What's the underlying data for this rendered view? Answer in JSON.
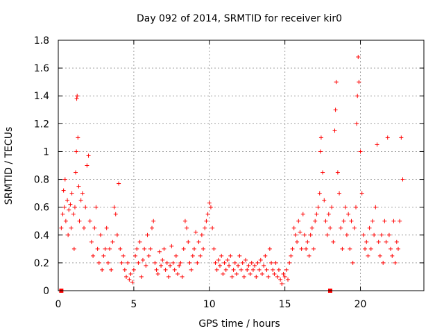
{
  "chart_data": {
    "type": "scatter",
    "title": "Day 092 of 2014, SRMTID for receiver kir0",
    "xlabel": "GPS time / hours",
    "ylabel": "SRMTID / TECUs",
    "xlim": [
      0,
      24.2
    ],
    "ylim": [
      0,
      1.8
    ],
    "grid": true,
    "marker": "+",
    "series_color": "#ff0000",
    "x_ticks": [
      {
        "value": 0,
        "label": "0"
      },
      {
        "value": 5,
        "label": "5"
      },
      {
        "value": 10,
        "label": "10"
      },
      {
        "value": 15,
        "label": "15"
      },
      {
        "value": 20,
        "label": "20"
      }
    ],
    "y_ticks": [
      {
        "value": 0,
        "label": "0"
      },
      {
        "value": 0.2,
        "label": "0.2"
      },
      {
        "value": 0.4,
        "label": "0.4"
      },
      {
        "value": 0.6,
        "label": "0.6"
      },
      {
        "value": 0.8,
        "label": "0.8"
      },
      {
        "value": 1.0,
        "label": "1"
      },
      {
        "value": 1.2,
        "label": "1.2"
      },
      {
        "value": 1.4,
        "label": "1.4"
      },
      {
        "value": 1.6,
        "label": "1.6"
      },
      {
        "value": 1.8,
        "label": "1.8"
      }
    ],
    "baseline_markers": [
      {
        "x": 0.2,
        "y": 0
      },
      {
        "x": 18.0,
        "y": 0
      }
    ],
    "points": [
      {
        "x": 0.2,
        "y": 0.45
      },
      {
        "x": 0.3,
        "y": 0.55
      },
      {
        "x": 0.35,
        "y": 0.72
      },
      {
        "x": 0.4,
        "y": 0.6
      },
      {
        "x": 0.45,
        "y": 0.8
      },
      {
        "x": 0.5,
        "y": 0.5
      },
      {
        "x": 0.6,
        "y": 0.65
      },
      {
        "x": 0.65,
        "y": 0.4
      },
      {
        "x": 0.7,
        "y": 0.58
      },
      {
        "x": 0.8,
        "y": 0.62
      },
      {
        "x": 0.85,
        "y": 0.45
      },
      {
        "x": 0.9,
        "y": 0.7
      },
      {
        "x": 1.0,
        "y": 0.55
      },
      {
        "x": 1.05,
        "y": 0.3
      },
      {
        "x": 1.1,
        "y": 0.6
      },
      {
        "x": 1.15,
        "y": 0.85
      },
      {
        "x": 1.2,
        "y": 1.0
      },
      {
        "x": 1.22,
        "y": 1.38
      },
      {
        "x": 1.25,
        "y": 1.4
      },
      {
        "x": 1.3,
        "y": 1.1
      },
      {
        "x": 1.35,
        "y": 0.75
      },
      {
        "x": 1.4,
        "y": 0.5
      },
      {
        "x": 1.5,
        "y": 0.65
      },
      {
        "x": 1.6,
        "y": 0.7
      },
      {
        "x": 1.7,
        "y": 0.45
      },
      {
        "x": 1.8,
        "y": 0.6
      },
      {
        "x": 1.9,
        "y": 0.9
      },
      {
        "x": 2.0,
        "y": 0.97
      },
      {
        "x": 2.1,
        "y": 0.5
      },
      {
        "x": 2.2,
        "y": 0.35
      },
      {
        "x": 2.3,
        "y": 0.25
      },
      {
        "x": 2.4,
        "y": 0.45
      },
      {
        "x": 2.5,
        "y": 0.6
      },
      {
        "x": 2.6,
        "y": 0.3
      },
      {
        "x": 2.7,
        "y": 0.2
      },
      {
        "x": 2.8,
        "y": 0.4
      },
      {
        "x": 2.9,
        "y": 0.15
      },
      {
        "x": 3.0,
        "y": 0.25
      },
      {
        "x": 3.1,
        "y": 0.3
      },
      {
        "x": 3.2,
        "y": 0.45
      },
      {
        "x": 3.3,
        "y": 0.2
      },
      {
        "x": 3.4,
        "y": 0.3
      },
      {
        "x": 3.5,
        "y": 0.15
      },
      {
        "x": 3.6,
        "y": 0.35
      },
      {
        "x": 3.7,
        "y": 0.6
      },
      {
        "x": 3.8,
        "y": 0.55
      },
      {
        "x": 3.9,
        "y": 0.4
      },
      {
        "x": 4.0,
        "y": 0.77
      },
      {
        "x": 4.1,
        "y": 0.3
      },
      {
        "x": 4.2,
        "y": 0.2
      },
      {
        "x": 4.3,
        "y": 0.25
      },
      {
        "x": 4.4,
        "y": 0.15
      },
      {
        "x": 4.5,
        "y": 0.1
      },
      {
        "x": 4.6,
        "y": 0.2
      },
      {
        "x": 4.7,
        "y": 0.08
      },
      {
        "x": 4.8,
        "y": 0.12
      },
      {
        "x": 4.9,
        "y": 0.06
      },
      {
        "x": 5.0,
        "y": 0.15
      },
      {
        "x": 5.1,
        "y": 0.25
      },
      {
        "x": 5.2,
        "y": 0.3
      },
      {
        "x": 5.3,
        "y": 0.2
      },
      {
        "x": 5.4,
        "y": 0.35
      },
      {
        "x": 5.5,
        "y": 0.1
      },
      {
        "x": 5.6,
        "y": 0.22
      },
      {
        "x": 5.7,
        "y": 0.3
      },
      {
        "x": 5.8,
        "y": 0.18
      },
      {
        "x": 5.9,
        "y": 0.4
      },
      {
        "x": 6.0,
        "y": 0.25
      },
      {
        "x": 6.1,
        "y": 0.3
      },
      {
        "x": 6.2,
        "y": 0.45
      },
      {
        "x": 6.3,
        "y": 0.5
      },
      {
        "x": 6.4,
        "y": 0.2
      },
      {
        "x": 6.5,
        "y": 0.15
      },
      {
        "x": 6.6,
        "y": 0.12
      },
      {
        "x": 6.7,
        "y": 0.28
      },
      {
        "x": 6.8,
        "y": 0.18
      },
      {
        "x": 6.9,
        "y": 0.22
      },
      {
        "x": 7.0,
        "y": 0.3
      },
      {
        "x": 7.1,
        "y": 0.15
      },
      {
        "x": 7.2,
        "y": 0.2
      },
      {
        "x": 7.3,
        "y": 0.1
      },
      {
        "x": 7.4,
        "y": 0.18
      },
      {
        "x": 7.5,
        "y": 0.32
      },
      {
        "x": 7.6,
        "y": 0.2
      },
      {
        "x": 7.7,
        "y": 0.15
      },
      {
        "x": 7.8,
        "y": 0.25
      },
      {
        "x": 7.9,
        "y": 0.12
      },
      {
        "x": 8.0,
        "y": 0.18
      },
      {
        "x": 8.1,
        "y": 0.2
      },
      {
        "x": 8.2,
        "y": 0.1
      },
      {
        "x": 8.3,
        "y": 0.3
      },
      {
        "x": 8.4,
        "y": 0.5
      },
      {
        "x": 8.5,
        "y": 0.45
      },
      {
        "x": 8.6,
        "y": 0.35
      },
      {
        "x": 8.7,
        "y": 0.2
      },
      {
        "x": 8.8,
        "y": 0.15
      },
      {
        "x": 8.9,
        "y": 0.25
      },
      {
        "x": 9.0,
        "y": 0.3
      },
      {
        "x": 9.1,
        "y": 0.42
      },
      {
        "x": 9.2,
        "y": 0.2
      },
      {
        "x": 9.3,
        "y": 0.35
      },
      {
        "x": 9.4,
        "y": 0.25
      },
      {
        "x": 9.5,
        "y": 0.4
      },
      {
        "x": 9.6,
        "y": 0.3
      },
      {
        "x": 9.7,
        "y": 0.45
      },
      {
        "x": 9.8,
        "y": 0.5
      },
      {
        "x": 9.9,
        "y": 0.55
      },
      {
        "x": 10.0,
        "y": 0.63
      },
      {
        "x": 10.1,
        "y": 0.6
      },
      {
        "x": 10.2,
        "y": 0.45
      },
      {
        "x": 10.3,
        "y": 0.3
      },
      {
        "x": 10.4,
        "y": 0.2
      },
      {
        "x": 10.5,
        "y": 0.15
      },
      {
        "x": 10.6,
        "y": 0.22
      },
      {
        "x": 10.7,
        "y": 0.18
      },
      {
        "x": 10.8,
        "y": 0.25
      },
      {
        "x": 10.9,
        "y": 0.12
      },
      {
        "x": 11.0,
        "y": 0.2
      },
      {
        "x": 11.1,
        "y": 0.15
      },
      {
        "x": 11.2,
        "y": 0.22
      },
      {
        "x": 11.3,
        "y": 0.18
      },
      {
        "x": 11.4,
        "y": 0.25
      },
      {
        "x": 11.5,
        "y": 0.1
      },
      {
        "x": 11.6,
        "y": 0.15
      },
      {
        "x": 11.7,
        "y": 0.2
      },
      {
        "x": 11.8,
        "y": 0.12
      },
      {
        "x": 11.9,
        "y": 0.18
      },
      {
        "x": 12.0,
        "y": 0.25
      },
      {
        "x": 12.1,
        "y": 0.15
      },
      {
        "x": 12.2,
        "y": 0.2
      },
      {
        "x": 12.3,
        "y": 0.1
      },
      {
        "x": 12.4,
        "y": 0.22
      },
      {
        "x": 12.5,
        "y": 0.15
      },
      {
        "x": 12.6,
        "y": 0.18
      },
      {
        "x": 12.7,
        "y": 0.12
      },
      {
        "x": 12.8,
        "y": 0.2
      },
      {
        "x": 12.9,
        "y": 0.15
      },
      {
        "x": 13.0,
        "y": 0.18
      },
      {
        "x": 13.1,
        "y": 0.1
      },
      {
        "x": 13.2,
        "y": 0.2
      },
      {
        "x": 13.3,
        "y": 0.15
      },
      {
        "x": 13.4,
        "y": 0.22
      },
      {
        "x": 13.5,
        "y": 0.12
      },
      {
        "x": 13.6,
        "y": 0.18
      },
      {
        "x": 13.7,
        "y": 0.25
      },
      {
        "x": 13.8,
        "y": 0.15
      },
      {
        "x": 13.9,
        "y": 0.1
      },
      {
        "x": 14.0,
        "y": 0.3
      },
      {
        "x": 14.1,
        "y": 0.2
      },
      {
        "x": 14.2,
        "y": 0.15
      },
      {
        "x": 14.3,
        "y": 0.12
      },
      {
        "x": 14.4,
        "y": 0.2
      },
      {
        "x": 14.5,
        "y": 0.1
      },
      {
        "x": 14.6,
        "y": 0.15
      },
      {
        "x": 14.7,
        "y": 0.08
      },
      {
        "x": 14.8,
        "y": 0.05
      },
      {
        "x": 14.9,
        "y": 0.12
      },
      {
        "x": 15.0,
        "y": 0.1
      },
      {
        "x": 15.1,
        "y": 0.15
      },
      {
        "x": 15.2,
        "y": 0.08
      },
      {
        "x": 15.3,
        "y": 0.2
      },
      {
        "x": 15.4,
        "y": 0.25
      },
      {
        "x": 15.5,
        "y": 0.3
      },
      {
        "x": 15.6,
        "y": 0.45
      },
      {
        "x": 15.7,
        "y": 0.4
      },
      {
        "x": 15.8,
        "y": 0.35
      },
      {
        "x": 15.9,
        "y": 0.5
      },
      {
        "x": 16.0,
        "y": 0.42
      },
      {
        "x": 16.1,
        "y": 0.3
      },
      {
        "x": 16.2,
        "y": 0.55
      },
      {
        "x": 16.3,
        "y": 0.4
      },
      {
        "x": 16.4,
        "y": 0.3
      },
      {
        "x": 16.5,
        "y": 0.35
      },
      {
        "x": 16.6,
        "y": 0.25
      },
      {
        "x": 16.7,
        "y": 0.4
      },
      {
        "x": 16.8,
        "y": 0.45
      },
      {
        "x": 16.9,
        "y": 0.3
      },
      {
        "x": 17.0,
        "y": 0.5
      },
      {
        "x": 17.1,
        "y": 0.55
      },
      {
        "x": 17.2,
        "y": 0.6
      },
      {
        "x": 17.3,
        "y": 0.7
      },
      {
        "x": 17.35,
        "y": 1.0
      },
      {
        "x": 17.4,
        "y": 1.1
      },
      {
        "x": 17.5,
        "y": 0.85
      },
      {
        "x": 17.6,
        "y": 0.65
      },
      {
        "x": 17.7,
        "y": 0.5
      },
      {
        "x": 17.8,
        "y": 0.4
      },
      {
        "x": 17.9,
        "y": 0.55
      },
      {
        "x": 18.0,
        "y": 0.45
      },
      {
        "x": 18.1,
        "y": 0.6
      },
      {
        "x": 18.2,
        "y": 0.35
      },
      {
        "x": 18.3,
        "y": 1.15
      },
      {
        "x": 18.35,
        "y": 1.3
      },
      {
        "x": 18.4,
        "y": 1.5
      },
      {
        "x": 18.5,
        "y": 0.85
      },
      {
        "x": 18.6,
        "y": 0.7
      },
      {
        "x": 18.7,
        "y": 0.45
      },
      {
        "x": 18.8,
        "y": 0.3
      },
      {
        "x": 18.9,
        "y": 0.5
      },
      {
        "x": 19.0,
        "y": 0.6
      },
      {
        "x": 19.1,
        "y": 0.4
      },
      {
        "x": 19.2,
        "y": 0.55
      },
      {
        "x": 19.3,
        "y": 0.3
      },
      {
        "x": 19.4,
        "y": 0.5
      },
      {
        "x": 19.5,
        "y": 0.2
      },
      {
        "x": 19.6,
        "y": 0.45
      },
      {
        "x": 19.7,
        "y": 0.6
      },
      {
        "x": 19.75,
        "y": 1.2
      },
      {
        "x": 19.8,
        "y": 1.4
      },
      {
        "x": 19.85,
        "y": 1.68
      },
      {
        "x": 19.9,
        "y": 1.5
      },
      {
        "x": 20.0,
        "y": 1.0
      },
      {
        "x": 20.1,
        "y": 0.7
      },
      {
        "x": 20.2,
        "y": 0.4
      },
      {
        "x": 20.3,
        "y": 0.3
      },
      {
        "x": 20.4,
        "y": 0.35
      },
      {
        "x": 20.5,
        "y": 0.25
      },
      {
        "x": 20.6,
        "y": 0.45
      },
      {
        "x": 20.7,
        "y": 0.3
      },
      {
        "x": 20.8,
        "y": 0.5
      },
      {
        "x": 20.9,
        "y": 0.4
      },
      {
        "x": 21.0,
        "y": 0.6
      },
      {
        "x": 21.1,
        "y": 1.05
      },
      {
        "x": 21.2,
        "y": 0.35
      },
      {
        "x": 21.3,
        "y": 0.25
      },
      {
        "x": 21.4,
        "y": 0.4
      },
      {
        "x": 21.5,
        "y": 0.2
      },
      {
        "x": 21.6,
        "y": 0.5
      },
      {
        "x": 21.7,
        "y": 0.35
      },
      {
        "x": 21.8,
        "y": 1.1
      },
      {
        "x": 21.9,
        "y": 0.4
      },
      {
        "x": 22.0,
        "y": 0.3
      },
      {
        "x": 22.1,
        "y": 0.25
      },
      {
        "x": 22.2,
        "y": 0.5
      },
      {
        "x": 22.3,
        "y": 0.2
      },
      {
        "x": 22.4,
        "y": 0.35
      },
      {
        "x": 22.5,
        "y": 0.3
      },
      {
        "x": 22.6,
        "y": 0.5
      },
      {
        "x": 22.7,
        "y": 1.1
      },
      {
        "x": 22.8,
        "y": 0.8
      }
    ]
  }
}
